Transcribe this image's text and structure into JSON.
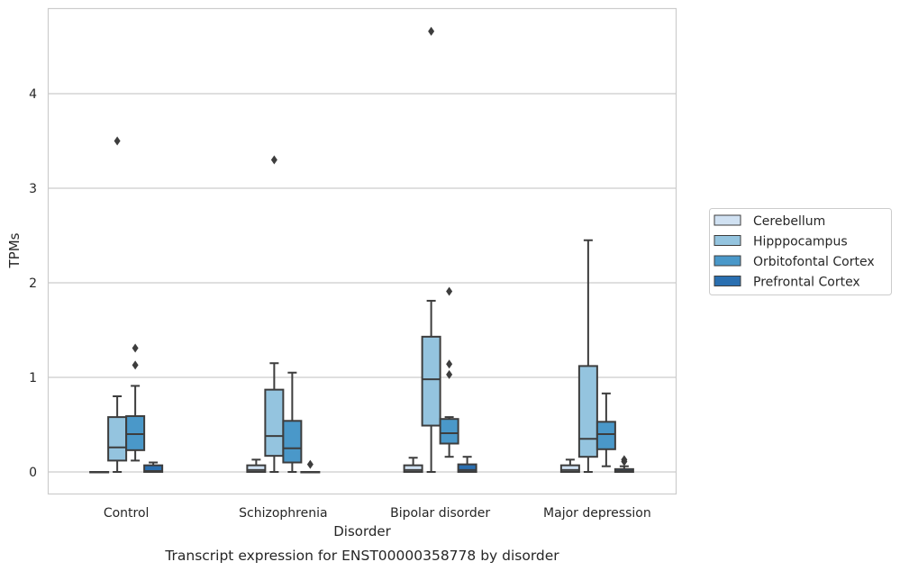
{
  "chart_data": {
    "type": "boxplot",
    "xlabel": "Disorder",
    "ylabel": "TPMs",
    "caption": "Transcript expression for ENST00000358778 by disorder",
    "categories": [
      "Control",
      "Schizophrenia",
      "Bipolar disorder",
      "Major depression"
    ],
    "ylim": [
      -0.22,
      4.9
    ],
    "yticks": [
      0,
      1,
      2,
      3,
      4
    ],
    "grid": true,
    "legend_position": "right",
    "series": [
      {
        "name": "Cerebellum",
        "color": "#d0e1f2",
        "boxes": [
          {
            "whisker_low": 0,
            "q1": 0,
            "median": 0,
            "q3": 0,
            "whisker_high": 0,
            "outliers": []
          },
          {
            "whisker_low": 0,
            "q1": 0,
            "median": 0.02,
            "q3": 0.07,
            "whisker_high": 0.13,
            "outliers": []
          },
          {
            "whisker_low": 0,
            "q1": 0,
            "median": 0.02,
            "q3": 0.07,
            "whisker_high": 0.15,
            "outliers": []
          },
          {
            "whisker_low": 0,
            "q1": 0,
            "median": 0.02,
            "q3": 0.07,
            "whisker_high": 0.13,
            "outliers": []
          }
        ]
      },
      {
        "name": "Hipppocampus",
        "color": "#94c4df",
        "boxes": [
          {
            "whisker_low": 0,
            "q1": 0.12,
            "median": 0.26,
            "q3": 0.58,
            "whisker_high": 0.8,
            "outliers": [
              3.5
            ]
          },
          {
            "whisker_low": 0,
            "q1": 0.17,
            "median": 0.38,
            "q3": 0.87,
            "whisker_high": 1.15,
            "outliers": [
              3.3
            ]
          },
          {
            "whisker_low": 0,
            "q1": 0.49,
            "median": 0.98,
            "q3": 1.43,
            "whisker_high": 1.81,
            "outliers": [
              4.66
            ]
          },
          {
            "whisker_low": 0,
            "q1": 0.16,
            "median": 0.35,
            "q3": 1.12,
            "whisker_high": 2.45,
            "outliers": []
          }
        ]
      },
      {
        "name": "Orbitofontal Cortex",
        "color": "#4a98c9",
        "boxes": [
          {
            "whisker_low": 0.12,
            "q1": 0.23,
            "median": 0.4,
            "q3": 0.59,
            "whisker_high": 0.91,
            "outliers": [
              1.13,
              1.31
            ]
          },
          {
            "whisker_low": 0,
            "q1": 0.1,
            "median": 0.25,
            "q3": 0.54,
            "whisker_high": 1.05,
            "outliers": []
          },
          {
            "whisker_low": 0.16,
            "q1": 0.3,
            "median": 0.41,
            "q3": 0.56,
            "whisker_high": 0.58,
            "outliers": [
              1.03,
              1.14,
              1.91
            ]
          },
          {
            "whisker_low": 0.06,
            "q1": 0.24,
            "median": 0.4,
            "q3": 0.53,
            "whisker_high": 0.83,
            "outliers": []
          }
        ]
      },
      {
        "name": "Prefrontal Cortex",
        "color": "#2a6fb0",
        "boxes": [
          {
            "whisker_low": 0,
            "q1": 0,
            "median": 0.01,
            "q3": 0.07,
            "whisker_high": 0.1,
            "outliers": []
          },
          {
            "whisker_low": 0,
            "q1": 0,
            "median": 0,
            "q3": 0,
            "whisker_high": 0,
            "outliers": [
              0.08
            ]
          },
          {
            "whisker_low": 0,
            "q1": 0,
            "median": 0.02,
            "q3": 0.08,
            "whisker_high": 0.16,
            "outliers": []
          },
          {
            "whisker_low": 0,
            "q1": 0,
            "median": 0.01,
            "q3": 0.03,
            "whisker_high": 0.06,
            "outliers": [
              0.11,
              0.13
            ]
          }
        ]
      }
    ]
  }
}
